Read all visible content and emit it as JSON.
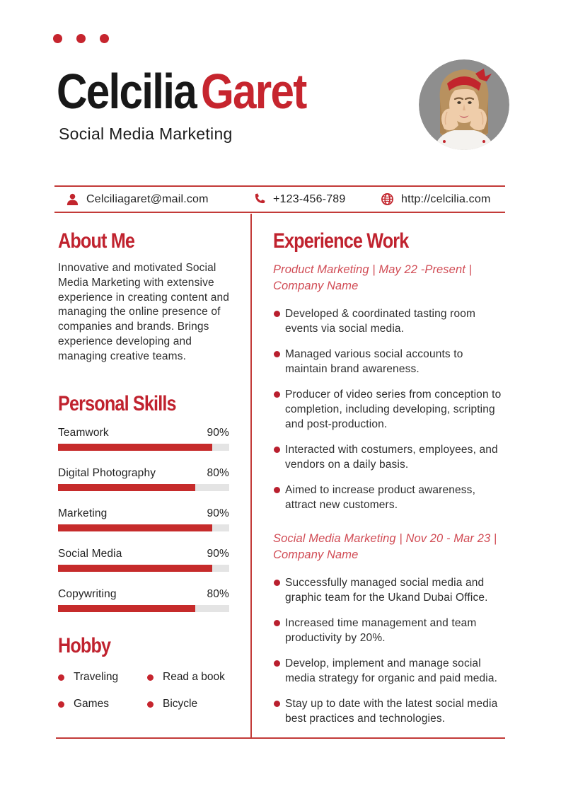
{
  "header": {
    "first_name": "Celcilia",
    "last_name": "Garet",
    "subtitle": "Social Media Marketing"
  },
  "contact": {
    "email": "Celciliagaret@mail.com",
    "phone": "+123-456-789",
    "website": "http://celcilia.com"
  },
  "about": {
    "heading": "About Me",
    "text": "Innovative and motivated Social Media Marketing with extensive experience in creating content and managing the online presence of companies and brands. Brings experience developing and managing creative teams."
  },
  "skills": {
    "heading": "Personal Skills",
    "items": [
      {
        "label": "Teamwork",
        "percent": "90%",
        "value": 90
      },
      {
        "label": "Digital Photography",
        "percent": "80%",
        "value": 80
      },
      {
        "label": "Marketing",
        "percent": "90%",
        "value": 90
      },
      {
        "label": "Social Media",
        "percent": "90%",
        "value": 90
      },
      {
        "label": "Copywriting",
        "percent": "80%",
        "value": 80
      }
    ]
  },
  "hobby": {
    "heading": "Hobby",
    "items": [
      "Traveling",
      "Read a book",
      "Games",
      "Bicycle"
    ]
  },
  "experience": {
    "heading": "Experience Work",
    "jobs": [
      {
        "title": "Product Marketing | May 22 -Present | Company Name",
        "bullets": [
          "Developed & coordinated tasting room events via social media.",
          "Managed various social accounts to maintain brand awareness.",
          "Producer of video series from conception to completion, including developing, scripting and post-production.",
          "Interacted with costumers, employees, and vendors on a daily basis.",
          "Aimed to increase product awareness, attract new customers."
        ]
      },
      {
        "title": "Social Media Marketing | Nov 20 - Mar 23 | Company Name",
        "bullets": [
          "Successfully managed social media and graphic team for the Ukand Dubai Office.",
          "Increased time management and team productivity by 20%.",
          "Develop, implement and manage social media strategy for organic and paid media.",
          "Stay up to date with the latest social media best practices and technologies."
        ]
      }
    ]
  },
  "colors": {
    "accent_red": "#c6252e",
    "heading_red": "#c0222e",
    "bar_red": "#c62b2b",
    "job_title_red": "#d14c55",
    "rule_red": "#c33b38",
    "track_gray": "#e4e4e4",
    "text_dark": "#2e2e2e"
  }
}
